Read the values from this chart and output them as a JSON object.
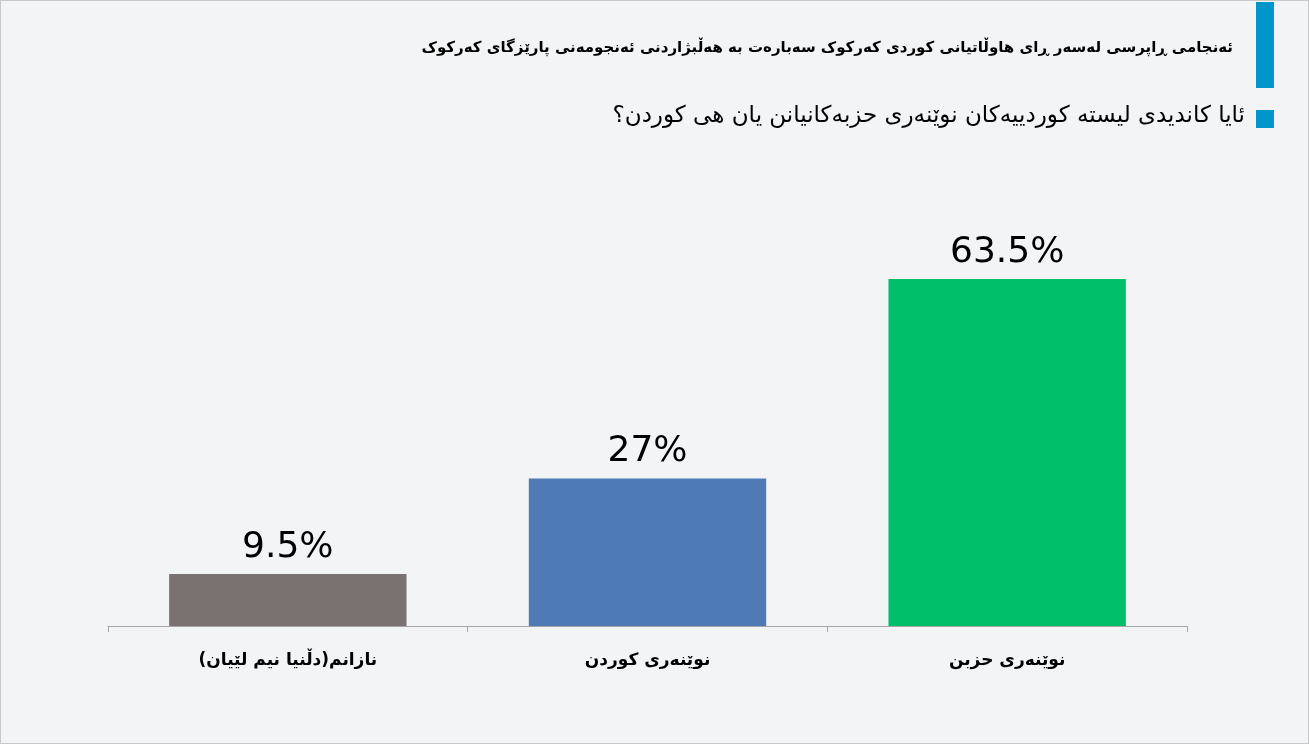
{
  "chart_data": {
    "type": "bar",
    "title": "ئەنجامی ڕاپرسی لەسەر ڕای هاوڵاتیانی کوردی کەرکوک سەبارەت بە هەڵبژاردنی ئەنجومەنی پارێزگای کەرکوک",
    "subtitle": "ئایا کاندیدی لیستە کوردییەکان نوێنەری حزبەکانیانن یان هی کوردن؟",
    "categories": [
      "نازانم(دڵنیا نیم لێیان)",
      "نوێنەری کوردن",
      "نوێنەری حزبن"
    ],
    "values": [
      9.5,
      27,
      63.5
    ],
    "colors": [
      "#7a7270",
      "#4e7ab5",
      "#00bf6b"
    ],
    "value_labels": [
      "9.5%",
      "27%",
      "63.5%"
    ],
    "tick_labels": "x"
  }
}
